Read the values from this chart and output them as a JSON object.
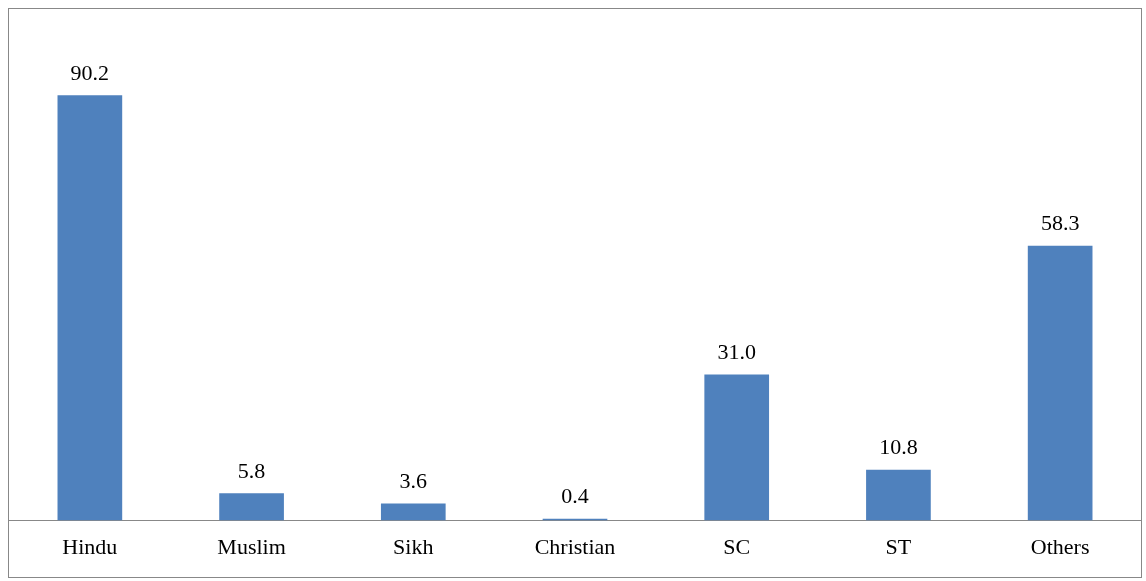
{
  "chart_data": {
    "type": "bar",
    "categories": [
      "Hindu",
      "Muslim",
      "Sikh",
      "Christian",
      "SC",
      "ST",
      "Others"
    ],
    "values": [
      90.2,
      5.8,
      3.6,
      0.4,
      31.0,
      10.8,
      58.3
    ],
    "value_labels": [
      "90.2",
      "5.8",
      "3.6",
      "0.4",
      "31.0",
      "10.8",
      "58.3"
    ],
    "color": "#4f81bd",
    "tick_labels": "x",
    "grid": false,
    "legend": false
  }
}
